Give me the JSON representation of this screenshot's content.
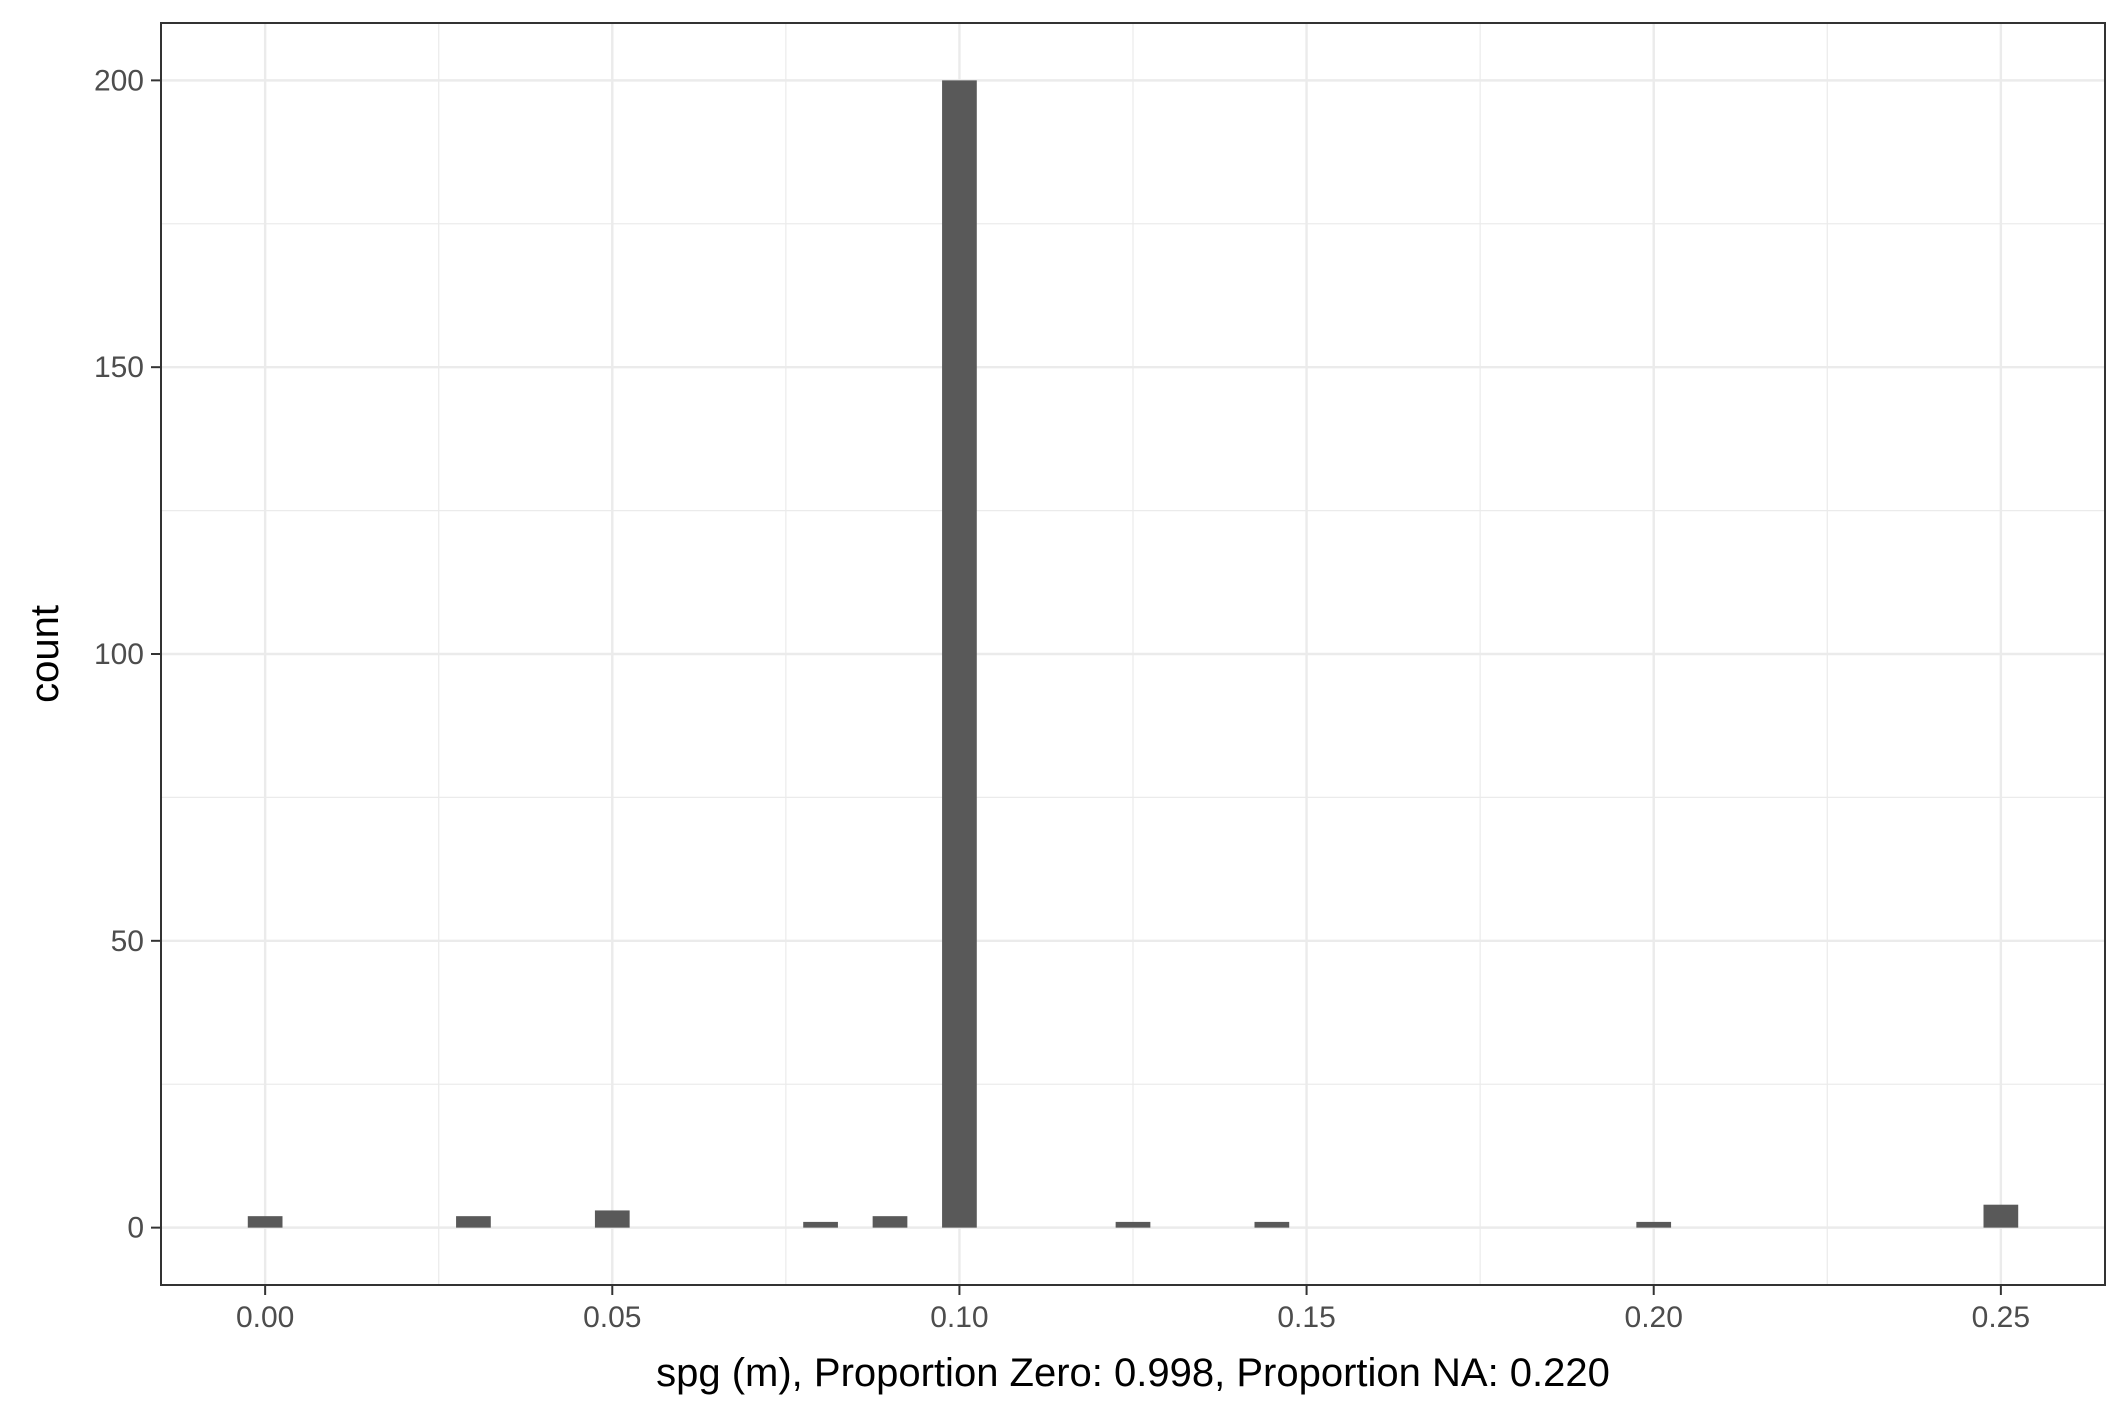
{
  "chart_data": {
    "type": "bar",
    "xlabel": "spg (m), Proportion Zero: 0.998, Proportion NA: 0.220",
    "ylabel": "count",
    "xlim": [
      -0.015,
      0.265
    ],
    "ylim": [
      -10,
      210
    ],
    "x_ticks": [
      0.0,
      0.05,
      0.1,
      0.15,
      0.2,
      0.25
    ],
    "x_tick_labels": [
      "0.00",
      "0.05",
      "0.10",
      "0.15",
      "0.20",
      "0.25"
    ],
    "y_ticks": [
      0,
      50,
      100,
      150,
      200
    ],
    "y_tick_labels": [
      "0",
      "50",
      "100",
      "150",
      "200"
    ],
    "bin_width": 0.005,
    "bins": [
      {
        "x": 0.0,
        "count": 2
      },
      {
        "x": 0.03,
        "count": 2
      },
      {
        "x": 0.05,
        "count": 3
      },
      {
        "x": 0.08,
        "count": 1
      },
      {
        "x": 0.09,
        "count": 2
      },
      {
        "x": 0.1,
        "count": 200
      },
      {
        "x": 0.125,
        "count": 1
      },
      {
        "x": 0.145,
        "count": 1
      },
      {
        "x": 0.2,
        "count": 1
      },
      {
        "x": 0.25,
        "count": 4
      }
    ],
    "grid": true,
    "bar_color": "#595959",
    "grid_color": "#ebebeb"
  }
}
